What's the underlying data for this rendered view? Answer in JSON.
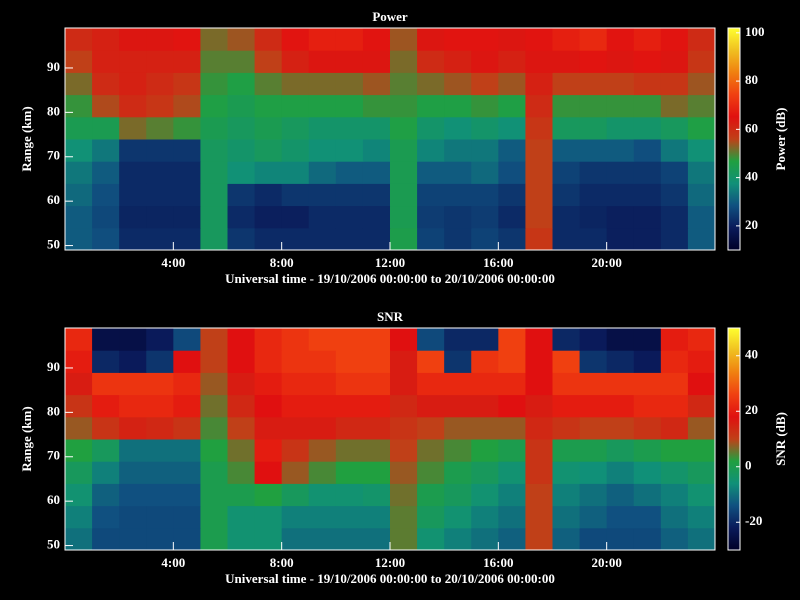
{
  "chart_data": [
    {
      "type": "heatmap",
      "title": "Power",
      "xlabel": "Universal time - 19/10/2006 00:00:00 to 20/10/2006 00:00:00",
      "ylabel": "Range (km)",
      "colorbar_label": "Power (dB)",
      "xbins": [
        0,
        1,
        2,
        3,
        4,
        5,
        6,
        7,
        8,
        9,
        10,
        11,
        12,
        13,
        14,
        15,
        16,
        17,
        18,
        19,
        20,
        21,
        22,
        23,
        24
      ],
      "ybins": [
        49,
        54,
        59,
        64,
        69,
        74,
        79,
        84,
        89,
        94,
        99
      ],
      "z": [
        [
          30,
          28,
          22,
          22,
          22,
          42,
          24,
          22,
          22,
          22,
          22,
          22,
          45,
          26,
          24,
          26,
          24,
          58,
          22,
          22,
          20,
          20,
          22,
          30
        ],
        [
          30,
          27,
          21,
          21,
          21,
          42,
          22,
          20,
          20,
          22,
          22,
          22,
          44,
          25,
          24,
          25,
          22,
          56,
          22,
          21,
          20,
          20,
          22,
          30
        ],
        [
          32,
          28,
          22,
          22,
          22,
          42,
          24,
          22,
          24,
          24,
          24,
          24,
          44,
          26,
          26,
          26,
          24,
          56,
          24,
          22,
          22,
          22,
          24,
          32
        ],
        [
          34,
          30,
          22,
          22,
          22,
          42,
          38,
          36,
          36,
          32,
          30,
          30,
          44,
          30,
          30,
          32,
          28,
          56,
          26,
          24,
          24,
          24,
          26,
          34
        ],
        [
          38,
          34,
          24,
          24,
          24,
          42,
          40,
          42,
          40,
          38,
          38,
          36,
          44,
          36,
          34,
          34,
          30,
          56,
          30,
          30,
          30,
          28,
          34,
          38
        ],
        [
          44,
          44,
          52,
          50,
          48,
          44,
          42,
          44,
          42,
          40,
          40,
          40,
          46,
          40,
          38,
          40,
          38,
          58,
          42,
          42,
          40,
          40,
          42,
          46
        ],
        [
          48,
          55,
          60,
          58,
          55,
          46,
          44,
          46,
          46,
          46,
          46,
          48,
          48,
          46,
          46,
          48,
          46,
          60,
          48,
          48,
          48,
          48,
          52,
          50
        ],
        [
          52,
          60,
          62,
          60,
          58,
          48,
          46,
          50,
          52,
          52,
          52,
          54,
          50,
          52,
          54,
          56,
          54,
          62,
          56,
          56,
          56,
          58,
          58,
          54
        ],
        [
          56,
          62,
          62,
          62,
          62,
          50,
          50,
          56,
          62,
          64,
          64,
          64,
          52,
          60,
          62,
          64,
          62,
          64,
          64,
          66,
          64,
          66,
          64,
          58
        ],
        [
          60,
          62,
          64,
          64,
          66,
          52,
          54,
          60,
          66,
          68,
          68,
          66,
          54,
          64,
          66,
          66,
          64,
          66,
          68,
          70,
          66,
          68,
          66,
          60
        ]
      ],
      "xlim": [
        0,
        24
      ],
      "ylim": [
        49,
        99
      ],
      "clim": [
        10,
        102
      ],
      "xticks": [
        {
          "value": 4,
          "label": "4:00"
        },
        {
          "value": 8,
          "label": "8:00"
        },
        {
          "value": 12,
          "label": "12:00"
        },
        {
          "value": 16,
          "label": "16:00"
        },
        {
          "value": 20,
          "label": "20:00"
        }
      ],
      "yticks": [
        50,
        60,
        70,
        80,
        90
      ],
      "cticks": [
        20,
        40,
        60,
        80,
        100
      ],
      "colorscale": [
        "#000028",
        "#0a1a5a",
        "#105080",
        "#109078",
        "#20a040",
        "#c04018",
        "#e01010",
        "#f04010",
        "#f08010",
        "#f0c020",
        "#ffff30"
      ]
    },
    {
      "type": "heatmap",
      "title": "SNR",
      "xlabel": "Universal time - 19/10/2006 00:00:00 to 20/10/2006 00:00:00",
      "ylabel": "Range (km)",
      "colorbar_label": "SNR (dB)",
      "xbins": [
        0,
        1,
        2,
        3,
        4,
        5,
        6,
        7,
        8,
        9,
        10,
        11,
        12,
        13,
        14,
        15,
        16,
        17,
        18,
        19,
        20,
        21,
        22,
        23,
        24
      ],
      "ybins": [
        49,
        54,
        59,
        64,
        69,
        74,
        79,
        84,
        89,
        94,
        99
      ],
      "z": [
        [
          -10,
          -15,
          -15,
          -15,
          -15,
          0,
          -5,
          -5,
          -10,
          -10,
          -10,
          -10,
          5,
          -5,
          -8,
          -10,
          -12,
          10,
          -12,
          -15,
          -15,
          -15,
          -12,
          -10
        ],
        [
          -8,
          -14,
          -15,
          -15,
          -15,
          0,
          -5,
          -5,
          -8,
          -8,
          -8,
          -8,
          5,
          -2,
          -5,
          -8,
          -10,
          10,
          -10,
          -12,
          -14,
          -14,
          -10,
          -8
        ],
        [
          -5,
          -12,
          -14,
          -14,
          -14,
          0,
          0,
          2,
          -2,
          -5,
          -5,
          -4,
          6,
          0,
          -2,
          -5,
          -8,
          10,
          -8,
          -10,
          -12,
          -10,
          -8,
          -5
        ],
        [
          -2,
          -8,
          -12,
          -12,
          -12,
          0,
          4,
          18,
          8,
          4,
          2,
          2,
          8,
          4,
          0,
          -2,
          -5,
          12,
          -5,
          -6,
          -8,
          -6,
          -4,
          -2
        ],
        [
          2,
          -2,
          -10,
          -10,
          -10,
          2,
          6,
          20,
          12,
          8,
          6,
          6,
          10,
          6,
          4,
          2,
          0,
          12,
          0,
          0,
          -2,
          0,
          2,
          2
        ],
        [
          8,
          12,
          15,
          14,
          12,
          4,
          10,
          16,
          16,
          16,
          14,
          14,
          12,
          10,
          8,
          8,
          8,
          14,
          12,
          10,
          10,
          12,
          14,
          8
        ],
        [
          12,
          20,
          22,
          22,
          20,
          6,
          14,
          18,
          20,
          20,
          20,
          20,
          14,
          16,
          16,
          16,
          18,
          16,
          20,
          20,
          20,
          22,
          22,
          14
        ],
        [
          16,
          24,
          24,
          24,
          22,
          8,
          16,
          20,
          22,
          22,
          24,
          24,
          16,
          22,
          22,
          22,
          22,
          18,
          24,
          24,
          24,
          24,
          24,
          18
        ],
        [
          20,
          -20,
          -22,
          -18,
          18,
          10,
          18,
          22,
          24,
          24,
          26,
          26,
          16,
          26,
          -18,
          24,
          26,
          18,
          26,
          -18,
          -20,
          -22,
          22,
          20
        ],
        [
          22,
          -25,
          -25,
          -22,
          -15,
          10,
          18,
          22,
          24,
          26,
          26,
          26,
          18,
          -15,
          -20,
          -20,
          26,
          18,
          -20,
          -22,
          -25,
          -25,
          20,
          22
        ]
      ],
      "xlim": [
        0,
        24
      ],
      "ylim": [
        49,
        99
      ],
      "clim": [
        -30,
        50
      ],
      "xticks": [
        {
          "value": 4,
          "label": "4:00"
        },
        {
          "value": 8,
          "label": "8:00"
        },
        {
          "value": 12,
          "label": "12:00"
        },
        {
          "value": 16,
          "label": "16:00"
        },
        {
          "value": 20,
          "label": "20:00"
        }
      ],
      "yticks": [
        50,
        60,
        70,
        80,
        90
      ],
      "cticks": [
        -20,
        0,
        20,
        40
      ],
      "colorscale": [
        "#000028",
        "#0a1a5a",
        "#105080",
        "#109078",
        "#20a040",
        "#c04018",
        "#e01010",
        "#f04010",
        "#f08010",
        "#f0c020",
        "#ffff30"
      ]
    }
  ]
}
